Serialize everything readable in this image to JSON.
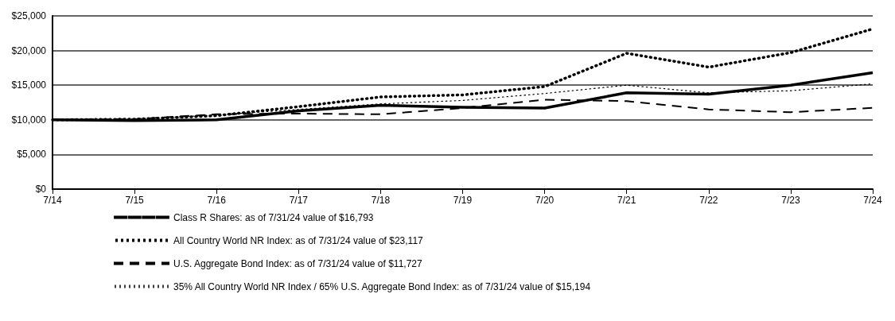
{
  "chart_data": {
    "type": "line",
    "categories": [
      "7/14",
      "7/15",
      "7/16",
      "7/17",
      "7/18",
      "7/19",
      "7/20",
      "7/21",
      "7/22",
      "7/23",
      "7/24"
    ],
    "series": [
      {
        "name": "Class R Shares: as of 7/31/24 value of $16,793",
        "color": "#000000",
        "line_style": "solid",
        "values": [
          10000,
          9900,
          10000,
          11300,
          12100,
          11800,
          11700,
          13900,
          13700,
          15000,
          16793
        ]
      },
      {
        "name": "All Country World NR Index: as of 7/31/24 value of $23,117",
        "color": "#000000",
        "line_style": "dotted",
        "values": [
          10000,
          10100,
          10600,
          11900,
          13300,
          13600,
          14800,
          19600,
          17600,
          19700,
          23117
        ]
      },
      {
        "name": "U.S. Aggregate Bond Index: as of 7/31/24 value of $11,727",
        "color": "#000000",
        "line_style": "dashed",
        "values": [
          10000,
          10100,
          10800,
          10900,
          10800,
          11700,
          12900,
          12700,
          11500,
          11100,
          11727
        ]
      },
      {
        "name": "35% All Country World NR Index / 65% U.S. Aggregate Bond Index: as of 7/31/24 value of $15,194",
        "color": "#000000",
        "line_style": "dotted",
        "values": [
          10000,
          10100,
          10700,
          11500,
          12300,
          12800,
          13800,
          15000,
          13900,
          14200,
          15194
        ]
      }
    ],
    "ylim": [
      0,
      25000
    ],
    "yticks": [
      {
        "value": 0,
        "label": "$0"
      },
      {
        "value": 5000,
        "label": "$5,000"
      },
      {
        "value": 10000,
        "label": "$10,000"
      },
      {
        "value": 15000,
        "label": "$15,000"
      },
      {
        "value": 20000,
        "label": "$20,000"
      },
      {
        "value": 25000,
        "label": "$25,000"
      }
    ],
    "grid": "y",
    "legend": "bottom left",
    "marker": "none"
  }
}
